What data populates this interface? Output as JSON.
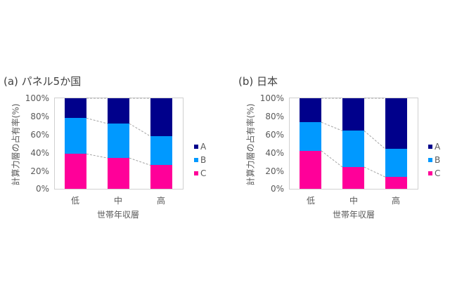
{
  "colors": {
    "A": "#00008b",
    "B": "#0099ff",
    "C": "#ff0099"
  },
  "axis": {
    "ylabel": "計算力層の占有率(%)",
    "xlabel": "世帯年収層",
    "yticks": [
      "0%",
      "20%",
      "40%",
      "60%",
      "80%",
      "100%"
    ],
    "categories": [
      "低",
      "中",
      "高"
    ]
  },
  "legend": [
    "A",
    "B",
    "C"
  ],
  "chart_data": [
    {
      "type": "bar",
      "stacked": true,
      "title": "(a) パネル5か国",
      "xlabel": "世帯年収層",
      "ylabel": "計算力層の占有率(%)",
      "ylim": [
        0,
        100
      ],
      "categories": [
        "低",
        "中",
        "高"
      ],
      "series": [
        {
          "name": "C",
          "values": [
            38.5,
            34,
            26
          ]
        },
        {
          "name": "B",
          "values": [
            39.5,
            38,
            32
          ]
        },
        {
          "name": "A",
          "values": [
            22,
            28,
            42
          ]
        }
      ],
      "legend_position": "right",
      "grid": false,
      "connector_lines": true
    },
    {
      "type": "bar",
      "stacked": true,
      "title": "(b) 日本",
      "xlabel": "世帯年収層",
      "ylabel": "計算力層の占有率(%)",
      "ylim": [
        0,
        100
      ],
      "categories": [
        "低",
        "中",
        "高"
      ],
      "series": [
        {
          "name": "C",
          "values": [
            42,
            24,
            13
          ]
        },
        {
          "name": "B",
          "values": [
            31.5,
            40,
            31
          ]
        },
        {
          "name": "A",
          "values": [
            26.5,
            36,
            56
          ]
        }
      ],
      "legend_position": "right",
      "grid": false,
      "connector_lines": true
    }
  ]
}
